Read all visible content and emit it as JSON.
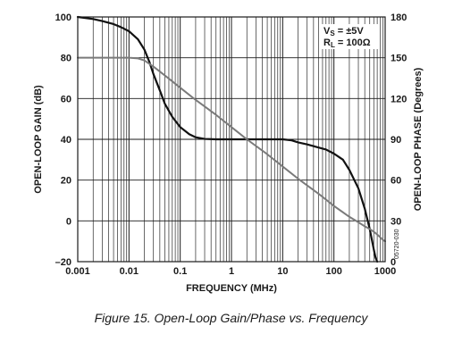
{
  "chart_data": {
    "type": "line",
    "x_scale": "log",
    "xlim": [
      0.001,
      1000
    ],
    "x_ticks": [
      "0.001",
      "0.01",
      "0.1",
      "1",
      "10",
      "100",
      "1000"
    ],
    "xlabel": "FREQUENCY (MHz)",
    "ylabel_left": "OPEN-LOOP GAIN (dB)",
    "ylim_left": [
      -20,
      100
    ],
    "y_ticks_left": [
      "100",
      "80",
      "60",
      "40",
      "20",
      "0",
      "–20"
    ],
    "ylabel_right": "OPEN-LOOP PHASE (Degrees)",
    "ylim_right": [
      0,
      180
    ],
    "y_ticks_right": [
      "180",
      "150",
      "120",
      "90",
      "60",
      "30",
      "0"
    ],
    "grid": true,
    "annotation": {
      "line1_main": "V",
      "line1_sub": "S",
      "line1_rest": " = ±5V",
      "line2_main": "R",
      "line2_sub": "L",
      "line2_rest": " = 100Ω"
    },
    "figure_code": "05720-030",
    "series": [
      {
        "axis": "left",
        "color": "#111111",
        "x": [
          0.001,
          0.002,
          0.003,
          0.005,
          0.007,
          0.01,
          0.015,
          0.02,
          0.025,
          0.03,
          0.04,
          0.05,
          0.07,
          0.1,
          0.15,
          0.2,
          0.3,
          0.5,
          1,
          2,
          5,
          10,
          15,
          20,
          30,
          50,
          70,
          100,
          150,
          200,
          300,
          400,
          500,
          600,
          650,
          700
        ],
        "y": [
          100,
          99,
          98,
          96.5,
          95,
          93,
          89,
          84,
          78,
          72,
          64,
          57.5,
          51,
          46,
          42.5,
          41,
          40.2,
          40,
          40,
          40,
          40,
          40,
          39.5,
          38.5,
          37.5,
          36,
          35,
          33,
          30,
          25,
          16,
          6,
          -4,
          -14,
          -18,
          -20
        ]
      },
      {
        "axis": "right",
        "color": "#7a7a7a",
        "x": [
          0.001,
          0.002,
          0.005,
          0.01,
          0.015,
          0.02,
          0.03,
          0.05,
          0.1,
          0.2,
          0.5,
          1,
          2,
          5,
          10,
          20,
          50,
          100,
          200,
          300,
          400,
          500,
          600,
          700,
          800,
          900,
          1000
        ],
        "y": [
          150,
          150,
          150,
          150,
          149.5,
          148,
          143.5,
          137,
          128,
          119,
          108,
          99,
          90,
          79,
          70,
          61,
          50,
          41,
          33,
          29,
          26,
          24,
          22,
          20,
          18,
          16,
          15
        ]
      }
    ]
  },
  "caption": "Figure 15. Open-Loop Gain/Phase vs. Frequency"
}
